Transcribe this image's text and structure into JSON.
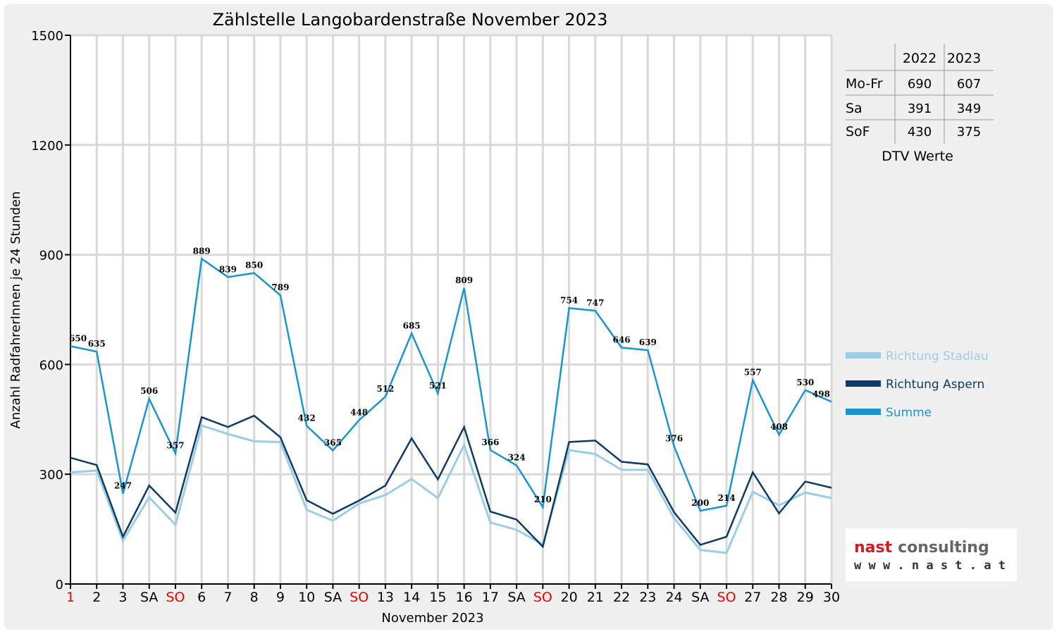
{
  "chart_data": {
    "type": "line",
    "title": "Zählstelle Langobardenstraße November 2023",
    "xlabel": "November 2023",
    "ylabel": "Anzahl RadfahrerInnen je 24 Stunden",
    "ylim": [
      0,
      1500
    ],
    "yticks": [
      "0",
      "300",
      "600",
      "900",
      "1200",
      "1500"
    ],
    "grid": true,
    "legend_position": "right",
    "categories": [
      "1",
      "2",
      "3",
      "SA",
      "SO",
      "6",
      "7",
      "8",
      "9",
      "10",
      "SA",
      "SO",
      "13",
      "14",
      "15",
      "16",
      "17",
      "SA",
      "SO",
      "20",
      "21",
      "22",
      "23",
      "24",
      "SA",
      "SO",
      "27",
      "28",
      "29",
      "30"
    ],
    "category_colors": [
      "#ee0000",
      "#000000",
      "#000000",
      "#000000",
      "#ee0000",
      "#000000",
      "#000000",
      "#000000",
      "#000000",
      "#000000",
      "#000000",
      "#ee0000",
      "#000000",
      "#000000",
      "#000000",
      "#000000",
      "#000000",
      "#000000",
      "#ee0000",
      "#000000",
      "#000000",
      "#000000",
      "#000000",
      "#000000",
      "#000000",
      "#ee0000",
      "#000000",
      "#000000",
      "#000000",
      "#000000"
    ],
    "series": [
      {
        "name": "Richtung Stadlau",
        "color": "#9acde6",
        "values": [
          305,
          310,
          118,
          237,
          162,
          433,
          410,
          390,
          388,
          203,
          173,
          220,
          243,
          287,
          235,
          380,
          168,
          148,
          108,
          366,
          355,
          312,
          312,
          180,
          93,
          85,
          252,
          215,
          250,
          235
        ]
      },
      {
        "name": "Richtung Aspern",
        "color": "#0d3b66",
        "values": [
          345,
          325,
          129,
          269,
          195,
          456,
          429,
          460,
          401,
          229,
          192,
          228,
          269,
          398,
          286,
          429,
          198,
          176,
          102,
          388,
          392,
          334,
          327,
          196,
          107,
          129,
          305,
          193,
          280,
          263
        ]
      },
      {
        "name": "Summe",
        "color": "#1a95d2",
        "values": [
          650,
          635,
          247,
          506,
          357,
          889,
          839,
          850,
          789,
          432,
          365,
          448,
          512,
          685,
          521,
          809,
          366,
          324,
          210,
          754,
          747,
          646,
          639,
          376,
          200,
          214,
          557,
          408,
          530,
          498
        ],
        "labels": [
          "650",
          "635",
          "247",
          "506",
          "357",
          "889",
          "839",
          "850",
          "789",
          "432",
          "365",
          "448",
          "512",
          "685",
          "521",
          "809",
          "366",
          "324",
          "210",
          "754",
          "747",
          "646",
          "639",
          "376",
          "200",
          "214",
          "557",
          "408",
          "530",
          "498"
        ]
      }
    ]
  },
  "dtv_table": {
    "headers": [
      "",
      "2022",
      "2023"
    ],
    "rows": [
      {
        "label": "Mo-Fr",
        "v2022": "690",
        "v2023": "607"
      },
      {
        "label": "Sa",
        "v2022": "391",
        "v2023": "349"
      },
      {
        "label": "SoF",
        "v2022": "430",
        "v2023": "375"
      }
    ],
    "caption": "DTV Werte"
  },
  "logo": {
    "name_part1": "nast",
    "name_part2": "consulting",
    "url": "w w w . n a s t . a t",
    "color1": "#cc1f1f",
    "color2": "#666666"
  }
}
